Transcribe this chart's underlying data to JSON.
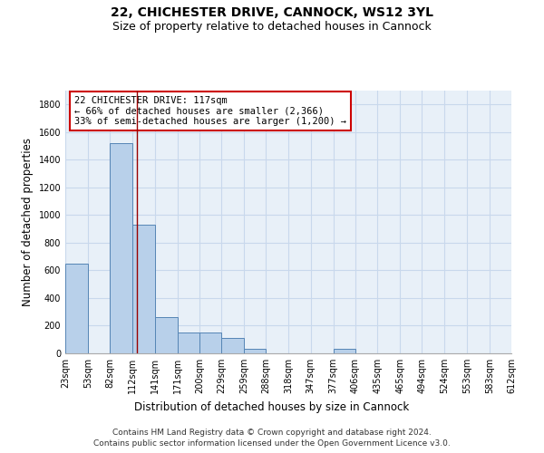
{
  "title_line1": "22, CHICHESTER DRIVE, CANNOCK, WS12 3YL",
  "title_line2": "Size of property relative to detached houses in Cannock",
  "xlabel": "Distribution of detached houses by size in Cannock",
  "ylabel": "Number of detached properties",
  "bin_edges": [
    23,
    53,
    82,
    112,
    141,
    171,
    200,
    229,
    259,
    288,
    318,
    347,
    377,
    406,
    435,
    465,
    494,
    524,
    553,
    583,
    612
  ],
  "bar_heights": [
    650,
    0,
    1520,
    930,
    260,
    150,
    150,
    110,
    30,
    0,
    0,
    0,
    30,
    0,
    0,
    0,
    0,
    0,
    0,
    0
  ],
  "bar_color": "#b8d0ea",
  "bar_edge_color": "#5585b5",
  "grid_color": "#c8d8ec",
  "background_color": "#e8f0f8",
  "tick_labels": [
    "23sqm",
    "53sqm",
    "82sqm",
    "112sqm",
    "141sqm",
    "171sqm",
    "200sqm",
    "229sqm",
    "259sqm",
    "288sqm",
    "318sqm",
    "347sqm",
    "377sqm",
    "406sqm",
    "435sqm",
    "465sqm",
    "494sqm",
    "524sqm",
    "553sqm",
    "583sqm",
    "612sqm"
  ],
  "property_line_x": 117,
  "annotation_line1": "22 CHICHESTER DRIVE: 117sqm",
  "annotation_line2": "← 66% of detached houses are smaller (2,366)",
  "annotation_line3": "33% of semi-detached houses are larger (1,200) →",
  "ylim": [
    0,
    1900
  ],
  "yticks": [
    0,
    200,
    400,
    600,
    800,
    1000,
    1200,
    1400,
    1600,
    1800
  ],
  "footer_line1": "Contains HM Land Registry data © Crown copyright and database right 2024.",
  "footer_line2": "Contains public sector information licensed under the Open Government Licence v3.0.",
  "line_color": "#990000",
  "box_edge_color": "#cc0000",
  "title_fontsize": 10,
  "subtitle_fontsize": 9,
  "axis_label_fontsize": 8.5,
  "tick_fontsize": 7,
  "annotation_fontsize": 7.5,
  "footer_fontsize": 6.5
}
